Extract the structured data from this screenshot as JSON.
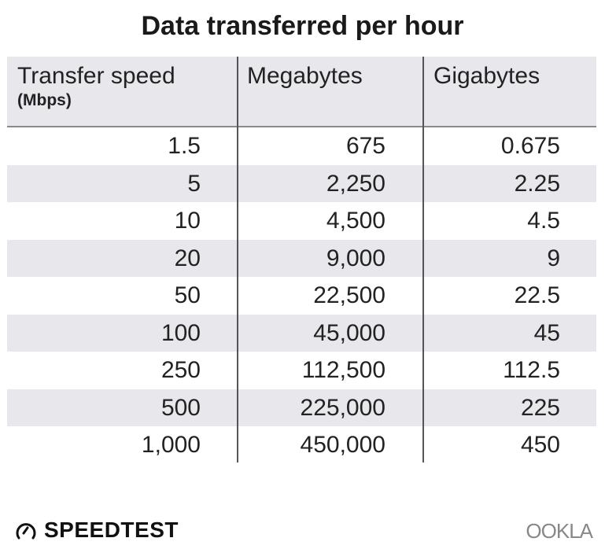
{
  "chart_data": {
    "type": "table",
    "title": "Data transferred per hour",
    "columns": [
      {
        "label": "Transfer speed",
        "sublabel": "(Mbps)"
      },
      {
        "label": "Megabytes"
      },
      {
        "label": "Gigabytes"
      }
    ],
    "rows": [
      [
        "1.5",
        "675",
        "0.675"
      ],
      [
        "5",
        "2,250",
        "2.25"
      ],
      [
        "10",
        "4,500",
        "4.5"
      ],
      [
        "20",
        "9,000",
        "9"
      ],
      [
        "50",
        "22,500",
        "22.5"
      ],
      [
        "100",
        "45,000",
        "45"
      ],
      [
        "250",
        "112,500",
        "112.5"
      ],
      [
        "500",
        "225,000",
        "225"
      ],
      [
        "1,000",
        "450,000",
        "450"
      ]
    ]
  },
  "footer": {
    "left_logo": "SPEEDTEST",
    "right_logo": "OOKLA"
  },
  "colors": {
    "header_bg": "#e8e8ec",
    "alt_row_bg": "#e8e8ec"
  }
}
